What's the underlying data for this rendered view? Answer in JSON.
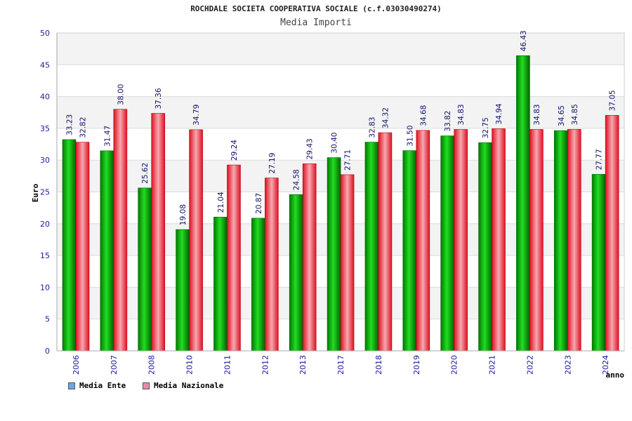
{
  "chart_data": {
    "type": "bar",
    "title": "ROCHDALE SOCIETA COOPERATIVA SOCIALE (c.f.03030490274)",
    "subtitle": "Media Importi",
    "xlabel": "anno",
    "ylabel": "Euro",
    "ylim": [
      0,
      50
    ],
    "yticks": [
      "0",
      "5",
      "10",
      "15",
      "20",
      "25",
      "30",
      "35",
      "40",
      "45",
      "50"
    ],
    "categories": [
      "2006",
      "2007",
      "2008",
      "2010",
      "2011",
      "2012",
      "2013",
      "2017",
      "2018",
      "2019",
      "2020",
      "2021",
      "2022",
      "2023",
      "2024"
    ],
    "series": [
      {
        "name": "Media Ente",
        "color": "#00b000",
        "legend_color": "#6aa6e8",
        "values": [
          33.23,
          31.47,
          25.62,
          19.08,
          21.04,
          20.87,
          24.58,
          30.4,
          32.83,
          31.5,
          33.82,
          32.75,
          46.43,
          34.65,
          27.77
        ],
        "labels": [
          "33.23",
          "31.47",
          "25.62",
          "19.08",
          "21.04",
          "20.87",
          "24.58",
          "30.40",
          "32.83",
          "31.50",
          "33.82",
          "32.75",
          "46.43",
          "34.65",
          "27.77"
        ]
      },
      {
        "name": "Media Nazionale",
        "color": "#ee2233",
        "legend_color": "#e88aa8",
        "values": [
          32.82,
          38.0,
          37.36,
          34.79,
          29.24,
          27.19,
          29.43,
          27.71,
          34.32,
          34.68,
          34.83,
          34.94,
          34.83,
          34.85,
          37.05
        ],
        "labels": [
          "32.82",
          "38.00",
          "37.36",
          "34.79",
          "29.24",
          "27.19",
          "29.43",
          "27.71",
          "34.32",
          "34.68",
          "34.83",
          "34.94",
          "34.83",
          "34.85",
          "37.05"
        ]
      }
    ],
    "grid": true,
    "legend_position": "bottom-left"
  }
}
